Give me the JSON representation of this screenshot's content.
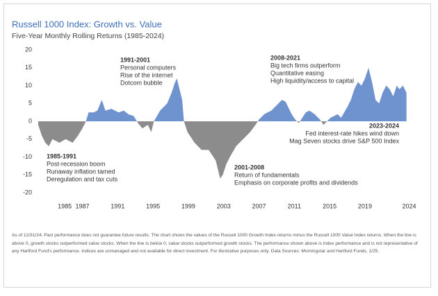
{
  "chart_data": {
    "type": "area",
    "title": "Russell 1000 Index: Growth vs. Value",
    "subtitle": "Five-Year Monthly Rolling Returns (1985-2024)",
    "x": [
      1982,
      1982.4,
      1982.8,
      1983.2,
      1983.6,
      1984.4,
      1985.1,
      1985.9,
      1986.5,
      1987,
      1987.4,
      1987.7,
      1988.3,
      1988.7,
      1989.2,
      1989.6,
      1990.3,
      1991.1,
      1991.7,
      1992.2,
      1992.8,
      1993.3,
      1993.8,
      1994.4,
      1994.8,
      1995.1,
      1995.8,
      1996.6,
      1997.1,
      1997.5,
      1997.7,
      1998,
      1998.3,
      1998.5,
      1998.9,
      1999.7,
      2000.5,
      2001.3,
      2002.1,
      2002.6,
      2002.9,
      2003.3,
      2003.7,
      2004.4,
      2005.2,
      2006,
      2006.6,
      2007,
      2007.6,
      2008.4,
      2009.2,
      2009.6,
      2010,
      2010.3,
      2010.7,
      2011.1,
      2011.5,
      2011.9,
      2012.3,
      2012.7,
      2013.3,
      2013.9,
      2014.3,
      2014.7,
      2015.1,
      2015.9,
      2016.3,
      2017,
      2017.4,
      2017.8,
      2018.2,
      2018.6,
      2019,
      2019.4,
      2019.8,
      2020.2,
      2020.6,
      2021,
      2021.4,
      2021.8,
      2022.2,
      2022.6,
      2022.9,
      2023.3,
      2023.7
    ],
    "values": [
      -1,
      -4,
      -6,
      -7,
      -5,
      -6,
      -5,
      -6,
      -4,
      -2,
      0,
      2.5,
      2.5,
      3,
      6,
      3,
      3.5,
      2.5,
      3,
      2,
      1.5,
      -0.5,
      -2,
      -1,
      -3,
      0,
      3,
      5,
      8,
      11,
      12,
      9,
      6,
      0,
      -3,
      -6,
      -8,
      -8,
      -11,
      -16,
      -15,
      -12,
      -10,
      -7,
      -5,
      -3,
      -1,
      0.5,
      2,
      3,
      5,
      6,
      5.5,
      4,
      2,
      0.5,
      -0.5,
      1,
      2.5,
      3,
      2,
      0.5,
      -1,
      0,
      1,
      2,
      1,
      4,
      6,
      9,
      11,
      10,
      12,
      15,
      11,
      6,
      5,
      8,
      10,
      9,
      7,
      10,
      9,
      10,
      8
    ],
    "positive_color": "#6f93cf",
    "negative_color": "#8c8c8c",
    "xlim": [
      1982,
      2024.2
    ],
    "xticks": [
      1985,
      1987,
      1991,
      1995,
      1999,
      2003,
      2007,
      2011,
      2015,
      2019,
      2024
    ],
    "ylim": [
      -20,
      20
    ],
    "yticks": [
      -20,
      -15,
      -10,
      -5,
      0,
      5,
      10,
      15,
      20
    ],
    "annotations": [
      {
        "title": "1985-1991",
        "lines": [
          "Post-recession boom",
          "Runaway inflation tamed",
          "Deregulation and tax cuts"
        ]
      },
      {
        "title": "1991-2001",
        "lines": [
          "Personal computers",
          "Rise of the internet",
          "Dotcom bubble"
        ]
      },
      {
        "title": "2001-2008",
        "lines": [
          "Return of fundamentals",
          "Emphasis on corporate profits and dividends"
        ]
      },
      {
        "title": "2008-2021",
        "lines": [
          "Big tech firms outperform",
          "Quantitative easing",
          "High liquidity/access to capital"
        ]
      },
      {
        "title": "2023-2024",
        "lines": [
          "Fed interest-rate hikes wind down",
          "Mag Seven stocks drive S&P 500 Index"
        ]
      }
    ],
    "footnote": "As of 12/31/24. Past performance does not guarantee future results. The chart shows the values of the Russell 1000 Growth Index returns minus the Russell 1000 Value Index returns. When the line is above 0, growth stocks outperformed value stocks. When the line is below 0, value stocks outperformed growth stocks. The performance shown above is index performance and is not representative of any Hartford Fund's performance. Indices are unmanaged and not available for direct investment.  For illustrative purposes only. Data Sources: Morningstar and Hartford Funds, 1/25."
  }
}
